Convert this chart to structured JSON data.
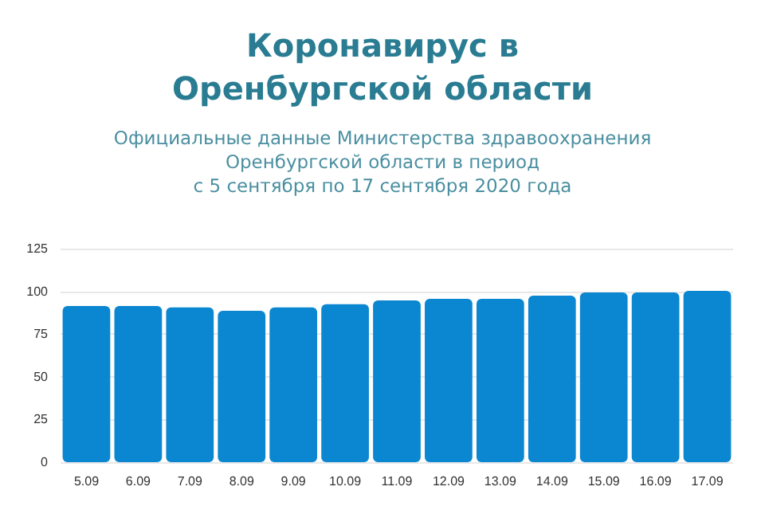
{
  "chart_data": {
    "type": "bar",
    "title": "Коронавирус в\nОренбургской области",
    "subtitle": "Официальные данные Министерства здравоохранения\nОренбургской области в период\nс 5 сентября по 17 сентября 2020 года",
    "categories": [
      "5.09",
      "6.09",
      "7.09",
      "8.09",
      "9.09",
      "10.09",
      "11.09",
      "12.09",
      "13.09",
      "14.09",
      "15.09",
      "16.09",
      "17.09"
    ],
    "values": [
      91.4,
      91.4,
      90.6,
      88.6,
      90.6,
      92.5,
      94.7,
      95.6,
      95.6,
      97.5,
      99.4,
      99.4,
      100.3
    ],
    "color": "#0a87d0",
    "ylim": [
      0,
      125
    ],
    "yticks": [
      0,
      25,
      50,
      75,
      100,
      125
    ],
    "grid": true
  }
}
